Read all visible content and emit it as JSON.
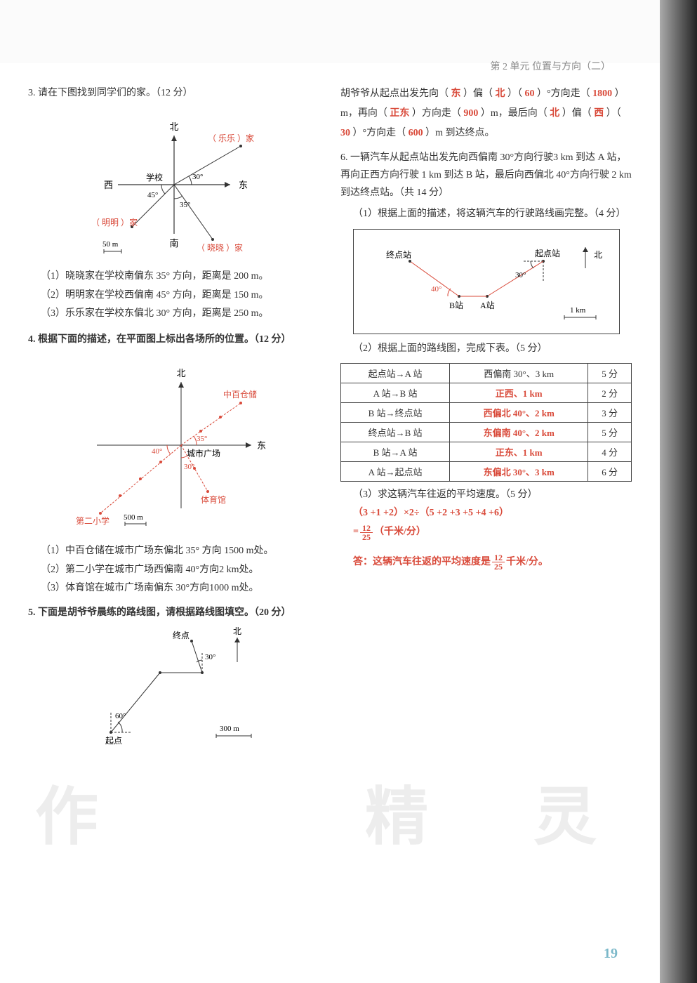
{
  "header": {
    "unit_prefix": "第",
    "unit_num": "2",
    "unit_label": "单元",
    "unit_title": "位置与方向（二）"
  },
  "q3": {
    "title": "3. 请在下图找到同学们的家。（12 分）",
    "diagram": {
      "north": "北",
      "south": "南",
      "east": "东",
      "west": "西",
      "center": "学校",
      "angle1": "30°",
      "angle2": "45°",
      "angle3": "35°",
      "lele": "（ 乐乐 ）家",
      "mingming": "（ 明明 ）家",
      "xiaoxiao": "（ 晓晓 ）家",
      "scale": "50 m",
      "colors": {
        "answer": "#d94a3a",
        "line": "#333"
      }
    },
    "sub1": "（1）晓晓家在学校南偏东 35° 方向，距离是 200 m。",
    "sub2": "（2）明明家在学校西偏南 45° 方向，距离是 150 m。",
    "sub3": "（3）乐乐家在学校东偏北 30° 方向，距离是 250 m。"
  },
  "q4": {
    "title": "4. 根据下面的描述，在平面图上标出各场所的位置。（12 分）",
    "diagram": {
      "north": "北",
      "east": "东",
      "center": "城市广场",
      "angle1": "35°",
      "angle2": "40°",
      "angle3": "30°",
      "zhongbai": "中百仓储",
      "xiaoxue": "第二小学",
      "tiyuguan": "体育馆",
      "scale": "500 m"
    },
    "sub1": "（1）中百仓储在城市广场东偏北 35° 方向 1500 m处。",
    "sub2": "（2）第二小学在城市广场西偏南 40°方向2 km处。",
    "sub3": "（3）体育馆在城市广场南偏东 30°方向1000 m处。"
  },
  "q5": {
    "title": "5. 下面是胡爷爷晨练的路线图，请根据路线图填空。（20 分）",
    "diagram": {
      "start": "起点",
      "end": "终点",
      "north": "北",
      "angle1": "60°",
      "angle2": "30°",
      "scale": "300 m"
    },
    "fill": {
      "pre": "胡爷爷从起点出发先向（ ",
      "a1": "东",
      "t1": " ）偏（ ",
      "a2": "北",
      "t2": " ）（ ",
      "a3": "60",
      "t3": " ）°方向走（ ",
      "a4": "1800",
      "t4": " ）m，再向（ ",
      "a5": "正东",
      "t5": " ）方向走（ ",
      "a6": "900",
      "t6": " ）m，最后向（ ",
      "a7": "北",
      "t7": " ）偏（ ",
      "a8": "西",
      "t8": " ）（ ",
      "a9": "30",
      "t9": " ）°方向走（ ",
      "a10": "600",
      "t10": " ）m 到达终点。"
    }
  },
  "q6": {
    "title": "6. 一辆汽车从起点站出发先向西偏南 30°方向行驶3 km 到达 A 站，再向正西方向行驶 1 km 到达 B 站，最后向西偏北 40°方向行驶 2 km 到达终点站。（共 14 分）",
    "sub1": "（1）根据上面的描述，将这辆汽车的行驶路线画完整。（4 分）",
    "diagram": {
      "start": "起点站",
      "end": "终点站",
      "north": "北",
      "a_station": "A站",
      "b_station": "B站",
      "angle1": "30°",
      "angle2": "40°",
      "scale": "1 km"
    },
    "sub2": "（2）根据上面的路线图，完成下表。（5 分）",
    "table": {
      "rows": [
        [
          "起点站→A 站",
          "西偏南 30°、3 km",
          "5 分"
        ],
        [
          "A 站→B 站",
          "正西、1 km",
          "2 分"
        ],
        [
          "B 站→终点站",
          "西偏北 40°、2 km",
          "3 分"
        ],
        [
          "终点站→B 站",
          "东偏南 40°、2 km",
          "5 分"
        ],
        [
          "B 站→A 站",
          "正东、1 km",
          "4 分"
        ],
        [
          "A 站→起点站",
          "东偏北 30°、3 km",
          "6 分"
        ]
      ],
      "answer_rows": [
        0,
        1,
        2,
        3,
        4,
        5
      ],
      "answer_col": 1
    },
    "sub3": "（3）求这辆汽车往返的平均速度。（5 分）",
    "calc1": "（3 +1 +2）×2÷（5 +2 +3 +5 +4 +6）",
    "calc2_pre": "=",
    "calc2_num": "12",
    "calc2_den": "25",
    "calc2_suf": "（千米/分）",
    "answer_line_pre": "答：这辆汽车往返的平均速度是",
    "answer_num": "12",
    "answer_den": "25",
    "answer_suf": "千米/分。"
  },
  "page_num": "19",
  "watermark": {
    "w1": "作",
    "w2": "精",
    "w3": "灵"
  }
}
